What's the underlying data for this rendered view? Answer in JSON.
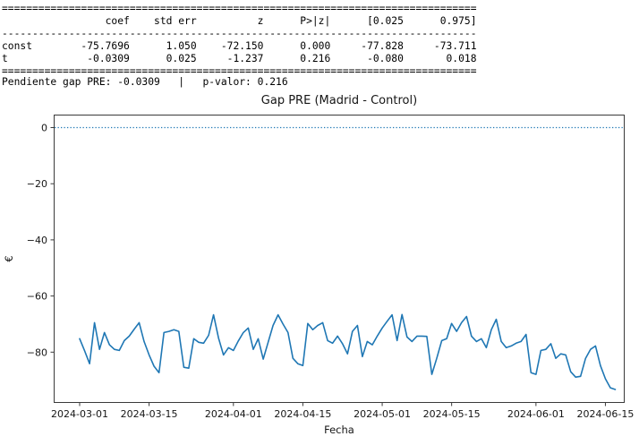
{
  "stats_table": {
    "columns": [
      "",
      "coef",
      "std err",
      "z",
      "P>|z|",
      "[0.025",
      "0.975]"
    ],
    "rows": [
      [
        "const",
        "-75.7696",
        "1.050",
        "-72.150",
        "0.000",
        "-77.828",
        "-73.711"
      ],
      [
        "t",
        "-0.0309",
        "0.025",
        "-1.237",
        "0.216",
        "-0.080",
        "0.018"
      ]
    ],
    "lines": [
      "==============================================================================",
      "                 coef    std err          z      P>|z|      [0.025      0.975]",
      "------------------------------------------------------------------------------",
      "const        -75.7696      1.050    -72.150      0.000     -77.828     -73.711",
      "t             -0.0309      0.025     -1.237      0.216      -0.080       0.018",
      "=============================================================================="
    ]
  },
  "summary_line": "Pendiente gap PRE: -0.0309   |   p-valor: 0.216",
  "chart_data": {
    "type": "line",
    "title": "Gap PRE (Madrid - Control)",
    "xlabel": "Fecha",
    "ylabel": "€",
    "grid": false,
    "legend": "none",
    "x_start_date": "2024-03-01",
    "x_step_days": 1,
    "ylim": [
      -98,
      4.6
    ],
    "y_ticks": [
      {
        "value": 0,
        "label": "0"
      },
      {
        "value": -20,
        "label": "−20"
      },
      {
        "value": -40,
        "label": "−40"
      },
      {
        "value": -60,
        "label": "−60"
      },
      {
        "value": -80,
        "label": "−80"
      }
    ],
    "x_ticks": [
      {
        "day": 0,
        "label": "2024-03-01"
      },
      {
        "day": 14,
        "label": "2024-03-15"
      },
      {
        "day": 31,
        "label": "2024-04-01"
      },
      {
        "day": 45,
        "label": "2024-04-15"
      },
      {
        "day": 61,
        "label": "2024-05-01"
      },
      {
        "day": 75,
        "label": "2024-05-15"
      },
      {
        "day": 92,
        "label": "2024-06-01"
      },
      {
        "day": 106,
        "label": "2024-06-15"
      }
    ],
    "zero_line": {
      "y": 0,
      "style": "dotted",
      "color": "#1f77b4"
    },
    "series": [
      {
        "name": "Gap PRE (Madrid - Control)",
        "color": "#1f77b4",
        "values": [
          -75.2,
          -79.5,
          -84.1,
          -69.5,
          -79.0,
          -73.0,
          -77.4,
          -79.0,
          -79.4,
          -75.9,
          -74.3,
          -71.8,
          -69.5,
          -76.2,
          -81.0,
          -85.0,
          -87.3,
          -73.0,
          -72.6,
          -72.0,
          -72.6,
          -85.4,
          -85.7,
          -75.2,
          -76.5,
          -76.8,
          -74.0,
          -66.7,
          -75.0,
          -81.0,
          -78.4,
          -79.4,
          -76.0,
          -73.0,
          -71.4,
          -79.0,
          -75.2,
          -82.5,
          -76.5,
          -70.5,
          -66.7,
          -70.0,
          -73.0,
          -82.2,
          -84.1,
          -84.8,
          -69.8,
          -72.0,
          -70.5,
          -69.5,
          -75.9,
          -76.8,
          -74.3,
          -77.0,
          -80.6,
          -72.6,
          -70.5,
          -81.6,
          -76.2,
          -77.4,
          -74.3,
          -71.4,
          -69.0,
          -66.7,
          -75.9,
          -66.6,
          -74.6,
          -76.2,
          -74.3,
          -74.3,
          -74.4,
          -87.9,
          -82.2,
          -75.9,
          -75.2,
          -69.8,
          -72.6,
          -69.5,
          -67.3,
          -74.3,
          -76.2,
          -75.2,
          -78.4,
          -72.0,
          -68.3,
          -76.2,
          -78.4,
          -77.8,
          -76.8,
          -76.2,
          -73.7,
          -87.3,
          -87.9,
          -79.4,
          -79.0,
          -77.0,
          -82.2,
          -80.6,
          -81.0,
          -87.0,
          -88.9,
          -88.6,
          -82.2,
          -79.0,
          -77.8,
          -84.8,
          -89.5,
          -92.7,
          -93.3
        ]
      }
    ]
  }
}
